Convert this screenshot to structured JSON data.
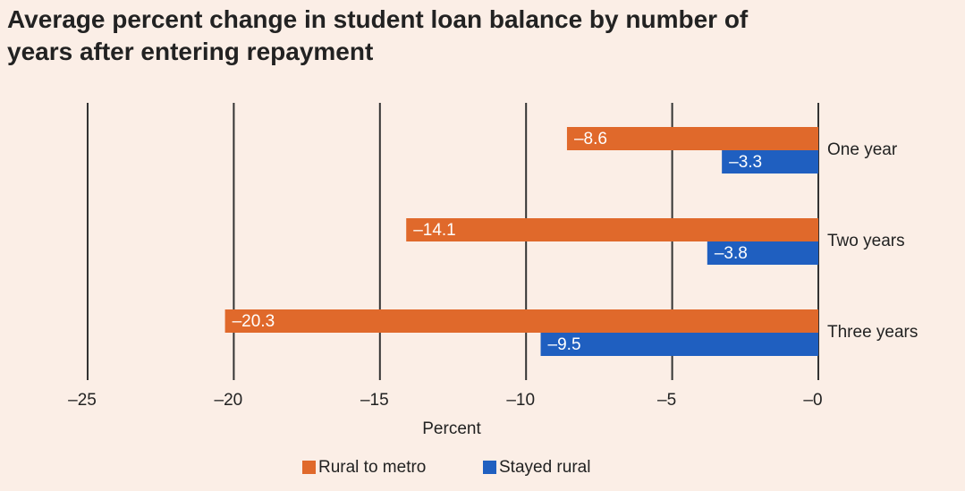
{
  "chart_data": {
    "type": "hbar",
    "title": "Average percent change in student loan balance by number of years after entering repayment",
    "categories": [
      "One year",
      "Two years",
      "Three years"
    ],
    "series": [
      {
        "name": "Rural to metro",
        "color": "#e0692b",
        "values": [
          -8.6,
          -14.1,
          -20.3
        ],
        "value_labels": [
          "–8.6",
          "–14.1",
          "–20.3"
        ]
      },
      {
        "name": "Stayed rural",
        "color": "#1f5fc0",
        "values": [
          -3.3,
          -3.8,
          -9.5
        ],
        "value_labels": [
          "–3.3",
          "–3.8",
          "–9.5"
        ]
      }
    ],
    "xlabel": "Percent",
    "xlim": [
      -25,
      0
    ],
    "xticks": [
      {
        "value": -25,
        "label": "–25"
      },
      {
        "value": -20,
        "label": "–20"
      },
      {
        "value": -15,
        "label": "–15"
      },
      {
        "value": -10,
        "label": "–10"
      },
      {
        "value": -5,
        "label": "–5"
      },
      {
        "value": 0,
        "label": "–0"
      }
    ],
    "grid": true,
    "legend": "bottom"
  }
}
